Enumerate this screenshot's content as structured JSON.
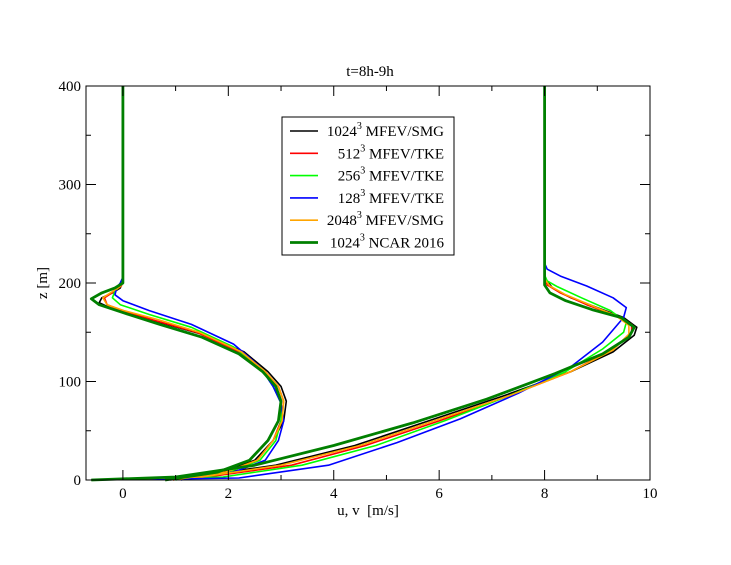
{
  "chart_data": {
    "type": "line",
    "title": "t=8h-9h",
    "xlabel": "u, v  [m/s]",
    "ylabel": "z [m]",
    "xlim": [
      -0.7,
      10
    ],
    "ylim": [
      0,
      400
    ],
    "xticks": [
      0,
      2,
      4,
      6,
      8,
      10
    ],
    "yticks": [
      0,
      100,
      200,
      300,
      400
    ],
    "grid": false,
    "legend_position": "upper-center",
    "series": [
      {
        "name": "1024³ MFEV/SMG",
        "legend": {
          "sup": "3",
          "pre": "1024",
          "post": "MFEV/SMG"
        },
        "color": "#000000",
        "width": 1.6,
        "u": [
          [
            0.9,
            0
          ],
          [
            1.9,
            8
          ],
          [
            2.5,
            20
          ],
          [
            2.85,
            40
          ],
          [
            3.05,
            60
          ],
          [
            3.1,
            80
          ],
          [
            3.0,
            95
          ],
          [
            2.75,
            110
          ],
          [
            2.3,
            130
          ],
          [
            1.5,
            148
          ],
          [
            0.7,
            160
          ],
          [
            0.05,
            170
          ],
          [
            -0.25,
            175
          ],
          [
            -0.45,
            180
          ],
          [
            -0.4,
            185
          ],
          [
            -0.2,
            190
          ],
          [
            -0.05,
            195
          ],
          [
            0.0,
            202
          ],
          [
            0.0,
            220
          ],
          [
            0.0,
            400
          ]
        ],
        "v": [
          [
            -0.6,
            0
          ],
          [
            1.3,
            3
          ],
          [
            2.9,
            15
          ],
          [
            4.4,
            35
          ],
          [
            5.8,
            60
          ],
          [
            7.2,
            85
          ],
          [
            8.5,
            110
          ],
          [
            9.3,
            130
          ],
          [
            9.7,
            147
          ],
          [
            9.75,
            155
          ],
          [
            9.5,
            165
          ],
          [
            9.0,
            175
          ],
          [
            8.5,
            185
          ],
          [
            8.15,
            195
          ],
          [
            8.0,
            205
          ],
          [
            8.0,
            220
          ],
          [
            8.0,
            400
          ]
        ]
      },
      {
        "name": "512³ MFEV/TKE",
        "legend": {
          "sup": "3",
          "pre": "512",
          "post": "MFEV/TKE"
        },
        "color": "#ff0000",
        "width": 1.6,
        "u": [
          [
            0.95,
            0
          ],
          [
            1.95,
            8
          ],
          [
            2.55,
            20
          ],
          [
            2.85,
            40
          ],
          [
            3.0,
            60
          ],
          [
            3.05,
            80
          ],
          [
            2.95,
            95
          ],
          [
            2.7,
            110
          ],
          [
            2.2,
            130
          ],
          [
            1.4,
            150
          ],
          [
            0.6,
            162
          ],
          [
            0.0,
            172
          ],
          [
            -0.3,
            178
          ],
          [
            -0.35,
            185
          ],
          [
            -0.15,
            192
          ],
          [
            -0.03,
            197
          ],
          [
            0.0,
            203
          ],
          [
            0.0,
            220
          ],
          [
            0.0,
            400
          ]
        ],
        "v": [
          [
            -0.6,
            0
          ],
          [
            1.6,
            3
          ],
          [
            3.2,
            15
          ],
          [
            4.6,
            35
          ],
          [
            6.0,
            60
          ],
          [
            7.3,
            85
          ],
          [
            8.5,
            110
          ],
          [
            9.3,
            133
          ],
          [
            9.65,
            150
          ],
          [
            9.65,
            158
          ],
          [
            9.3,
            168
          ],
          [
            8.8,
            178
          ],
          [
            8.3,
            190
          ],
          [
            8.05,
            198
          ],
          [
            8.0,
            205
          ],
          [
            8.0,
            220
          ],
          [
            8.0,
            400
          ]
        ]
      },
      {
        "name": "256³ MFEV/TKE",
        "legend": {
          "sup": "3",
          "pre": "256",
          "post": "MFEV/TKE"
        },
        "color": "#00ff00",
        "width": 1.6,
        "u": [
          [
            1.0,
            0
          ],
          [
            2.0,
            8
          ],
          [
            2.6,
            20
          ],
          [
            2.9,
            40
          ],
          [
            3.0,
            60
          ],
          [
            3.0,
            78
          ],
          [
            2.85,
            95
          ],
          [
            2.6,
            115
          ],
          [
            2.1,
            135
          ],
          [
            1.3,
            155
          ],
          [
            0.5,
            168
          ],
          [
            -0.05,
            178
          ],
          [
            -0.2,
            185
          ],
          [
            -0.15,
            192
          ],
          [
            -0.05,
            197
          ],
          [
            0.0,
            203
          ],
          [
            0.0,
            220
          ],
          [
            0.0,
            400
          ]
        ],
        "v": [
          [
            -0.6,
            0
          ],
          [
            1.9,
            3
          ],
          [
            3.4,
            15
          ],
          [
            4.8,
            35
          ],
          [
            6.1,
            60
          ],
          [
            7.3,
            85
          ],
          [
            8.4,
            110
          ],
          [
            9.1,
            133
          ],
          [
            9.5,
            150
          ],
          [
            9.55,
            160
          ],
          [
            9.25,
            172
          ],
          [
            8.7,
            185
          ],
          [
            8.25,
            196
          ],
          [
            8.05,
            202
          ],
          [
            8.0,
            208
          ],
          [
            8.0,
            220
          ],
          [
            8.0,
            400
          ]
        ]
      },
      {
        "name": "128³ MFEV/TKE",
        "legend": {
          "sup": "3",
          "pre": "128",
          "post": "MFEV/TKE"
        },
        "color": "#0000ff",
        "width": 1.6,
        "u": [
          [
            1.1,
            0
          ],
          [
            2.1,
            8
          ],
          [
            2.7,
            20
          ],
          [
            2.95,
            40
          ],
          [
            3.05,
            60
          ],
          [
            3.0,
            78
          ],
          [
            2.85,
            95
          ],
          [
            2.6,
            115
          ],
          [
            2.1,
            138
          ],
          [
            1.3,
            158
          ],
          [
            0.5,
            172
          ],
          [
            0.0,
            182
          ],
          [
            -0.15,
            188
          ],
          [
            -0.12,
            195
          ],
          [
            -0.05,
            200
          ],
          [
            0.0,
            206
          ],
          [
            0.0,
            220
          ],
          [
            0.0,
            400
          ]
        ],
        "v": [
          [
            -0.6,
            0
          ],
          [
            2.2,
            2
          ],
          [
            3.9,
            15
          ],
          [
            5.2,
            38
          ],
          [
            6.4,
            62
          ],
          [
            7.5,
            88
          ],
          [
            8.5,
            115
          ],
          [
            9.1,
            140
          ],
          [
            9.5,
            165
          ],
          [
            9.55,
            175
          ],
          [
            9.3,
            185
          ],
          [
            8.8,
            197
          ],
          [
            8.3,
            207
          ],
          [
            8.05,
            214
          ],
          [
            8.0,
            220
          ],
          [
            8.0,
            400
          ]
        ]
      },
      {
        "name": "2048³ MFEV/SMG",
        "legend": {
          "sup": "3",
          "pre": "2048",
          "post": "MFEV/SMG"
        },
        "color": "#ffa500",
        "width": 1.6,
        "u": [
          [
            0.95,
            0
          ],
          [
            1.95,
            8
          ],
          [
            2.55,
            20
          ],
          [
            2.85,
            40
          ],
          [
            3.02,
            60
          ],
          [
            3.05,
            80
          ],
          [
            2.95,
            95
          ],
          [
            2.7,
            110
          ],
          [
            2.25,
            130
          ],
          [
            1.45,
            150
          ],
          [
            0.65,
            163
          ],
          [
            0.02,
            172
          ],
          [
            -0.3,
            178
          ],
          [
            -0.38,
            185
          ],
          [
            -0.18,
            192
          ],
          [
            -0.04,
            197
          ],
          [
            0.0,
            203
          ],
          [
            0.0,
            220
          ],
          [
            0.0,
            400
          ]
        ],
        "v": [
          [
            -0.6,
            0
          ],
          [
            1.5,
            3
          ],
          [
            3.0,
            15
          ],
          [
            4.5,
            35
          ],
          [
            5.9,
            60
          ],
          [
            7.3,
            85
          ],
          [
            8.5,
            110
          ],
          [
            9.3,
            132
          ],
          [
            9.6,
            148
          ],
          [
            9.6,
            157
          ],
          [
            9.35,
            167
          ],
          [
            8.9,
            177
          ],
          [
            8.4,
            188
          ],
          [
            8.1,
            197
          ],
          [
            8.0,
            204
          ],
          [
            8.0,
            220
          ],
          [
            8.0,
            400
          ]
        ]
      },
      {
        "name": "1024³ NCAR 2016",
        "legend": {
          "sup": "3",
          "pre": "1024",
          "post": "NCAR 2016"
        },
        "color": "#008000",
        "width": 2.8,
        "u": [
          [
            0.8,
            0
          ],
          [
            1.8,
            8
          ],
          [
            2.4,
            20
          ],
          [
            2.75,
            40
          ],
          [
            2.95,
            60
          ],
          [
            3.0,
            80
          ],
          [
            2.9,
            95
          ],
          [
            2.65,
            110
          ],
          [
            2.2,
            128
          ],
          [
            1.5,
            145
          ],
          [
            0.7,
            158
          ],
          [
            0.0,
            170
          ],
          [
            -0.45,
            178
          ],
          [
            -0.6,
            184
          ],
          [
            -0.4,
            190
          ],
          [
            -0.15,
            195
          ],
          [
            0.0,
            200
          ],
          [
            0.0,
            220
          ],
          [
            0.0,
            400
          ]
        ],
        "v": [
          [
            -0.6,
            0
          ],
          [
            1.0,
            3
          ],
          [
            2.5,
            15
          ],
          [
            4.0,
            35
          ],
          [
            5.5,
            58
          ],
          [
            6.9,
            82
          ],
          [
            8.2,
            108
          ],
          [
            9.1,
            128
          ],
          [
            9.6,
            145
          ],
          [
            9.7,
            155
          ],
          [
            9.45,
            165
          ],
          [
            8.9,
            173
          ],
          [
            8.4,
            182
          ],
          [
            8.1,
            190
          ],
          [
            8.0,
            198
          ],
          [
            8.0,
            220
          ],
          [
            8.0,
            400
          ]
        ]
      }
    ]
  }
}
